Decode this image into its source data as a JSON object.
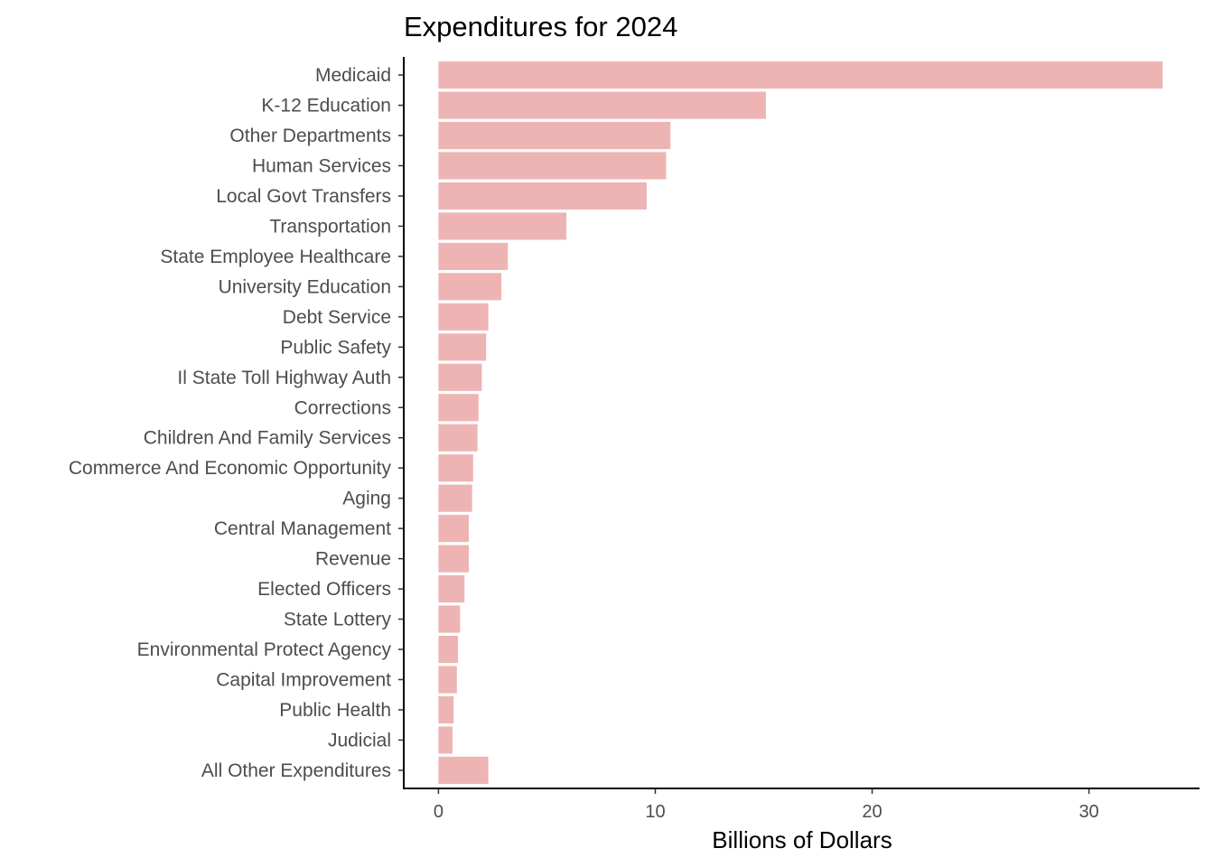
{
  "chart_data": {
    "type": "bar",
    "orientation": "horizontal",
    "title": "Expenditures for 2024",
    "xlabel": "Billions of Dollars",
    "ylabel": "",
    "xlim": [
      -1.6,
      35.1
    ],
    "xticks": [
      0,
      10,
      20,
      30
    ],
    "grid": false,
    "legend": "none",
    "bar_color": "#eeb4b4",
    "categories": [
      "Medicaid",
      "K-12 Education",
      "Other Departments",
      "Human Services",
      "Local Govt Transfers",
      "Transportation",
      "State Employee Healthcare",
      "University Education",
      "Debt Service",
      "Public Safety",
      "Il State Toll Highway Auth",
      "Corrections",
      "Children And Family Services",
      "Commerce And Economic Opportunity",
      "Aging",
      "Central Management",
      "Revenue",
      "Elected Officers",
      "State Lottery",
      "Environmental Protect Agency",
      "Capital Improvement",
      "Public Health",
      "Judicial",
      "All Other Expenditures"
    ],
    "values": [
      33.4,
      15.1,
      10.7,
      10.5,
      9.6,
      5.9,
      3.2,
      2.9,
      2.3,
      2.2,
      2.0,
      1.85,
      1.8,
      1.6,
      1.55,
      1.4,
      1.4,
      1.2,
      1.0,
      0.9,
      0.85,
      0.7,
      0.65,
      2.3
    ]
  }
}
